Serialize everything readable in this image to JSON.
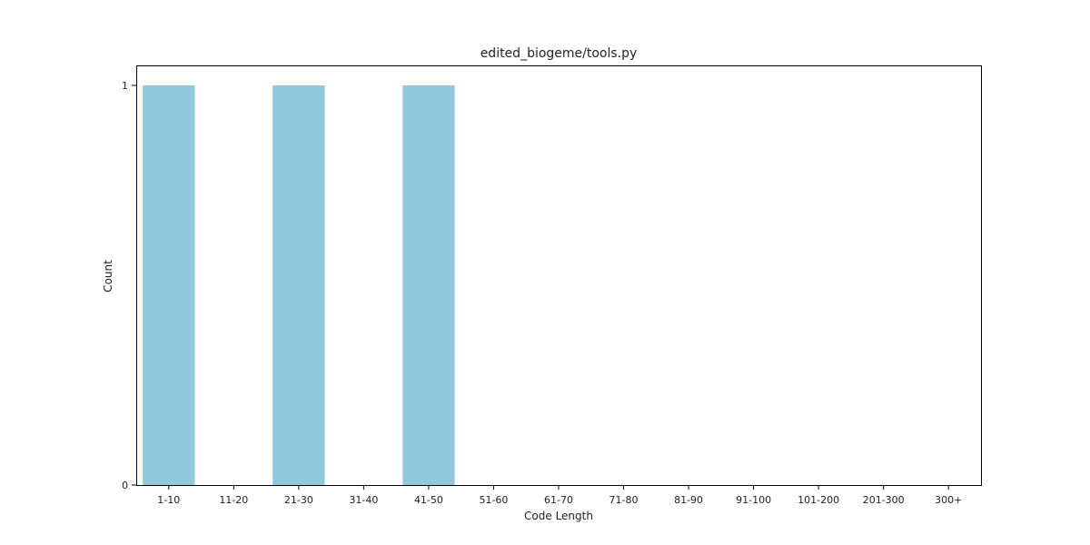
{
  "chart_data": {
    "type": "bar",
    "title": "edited_biogeme/tools.py",
    "xlabel": "Code Length",
    "ylabel": "Count",
    "categories": [
      "1-10",
      "11-20",
      "21-30",
      "31-40",
      "41-50",
      "51-60",
      "61-70",
      "71-80",
      "81-90",
      "91-100",
      "101-200",
      "201-300",
      "300+"
    ],
    "values": [
      1,
      0,
      1,
      0,
      1,
      0,
      0,
      0,
      0,
      0,
      0,
      0,
      0
    ],
    "ylim": [
      0,
      1
    ],
    "yticks": [
      0,
      1
    ],
    "grid": false,
    "legend": "none",
    "bar_color": "#92c8dd",
    "axis_color": "#000000"
  }
}
